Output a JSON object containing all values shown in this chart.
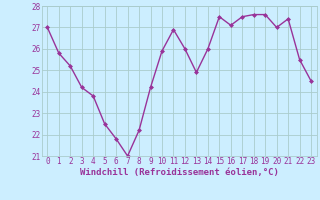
{
  "x": [
    0,
    1,
    2,
    3,
    4,
    5,
    6,
    7,
    8,
    9,
    10,
    11,
    12,
    13,
    14,
    15,
    16,
    17,
    18,
    19,
    20,
    21,
    22,
    23
  ],
  "y": [
    27.0,
    25.8,
    25.2,
    24.2,
    23.8,
    22.5,
    21.8,
    21.0,
    22.2,
    24.2,
    25.9,
    26.9,
    26.0,
    24.9,
    26.0,
    27.5,
    27.1,
    27.5,
    27.6,
    27.6,
    27.0,
    27.4,
    25.5,
    24.5
  ],
  "line_color": "#993399",
  "marker": "D",
  "marker_size": 2,
  "bg_color": "#cceeff",
  "grid_color": "#aacccc",
  "xlabel": "Windchill (Refroidissement éolien,°C)",
  "ylim": [
    21,
    28
  ],
  "xlim": [
    -0.5,
    23.5
  ],
  "yticks": [
    21,
    22,
    23,
    24,
    25,
    26,
    27,
    28
  ],
  "xticks": [
    0,
    1,
    2,
    3,
    4,
    5,
    6,
    7,
    8,
    9,
    10,
    11,
    12,
    13,
    14,
    15,
    16,
    17,
    18,
    19,
    20,
    21,
    22,
    23
  ],
  "tick_fontsize": 5.5,
  "xlabel_fontsize": 6.5,
  "line_width": 1.0
}
